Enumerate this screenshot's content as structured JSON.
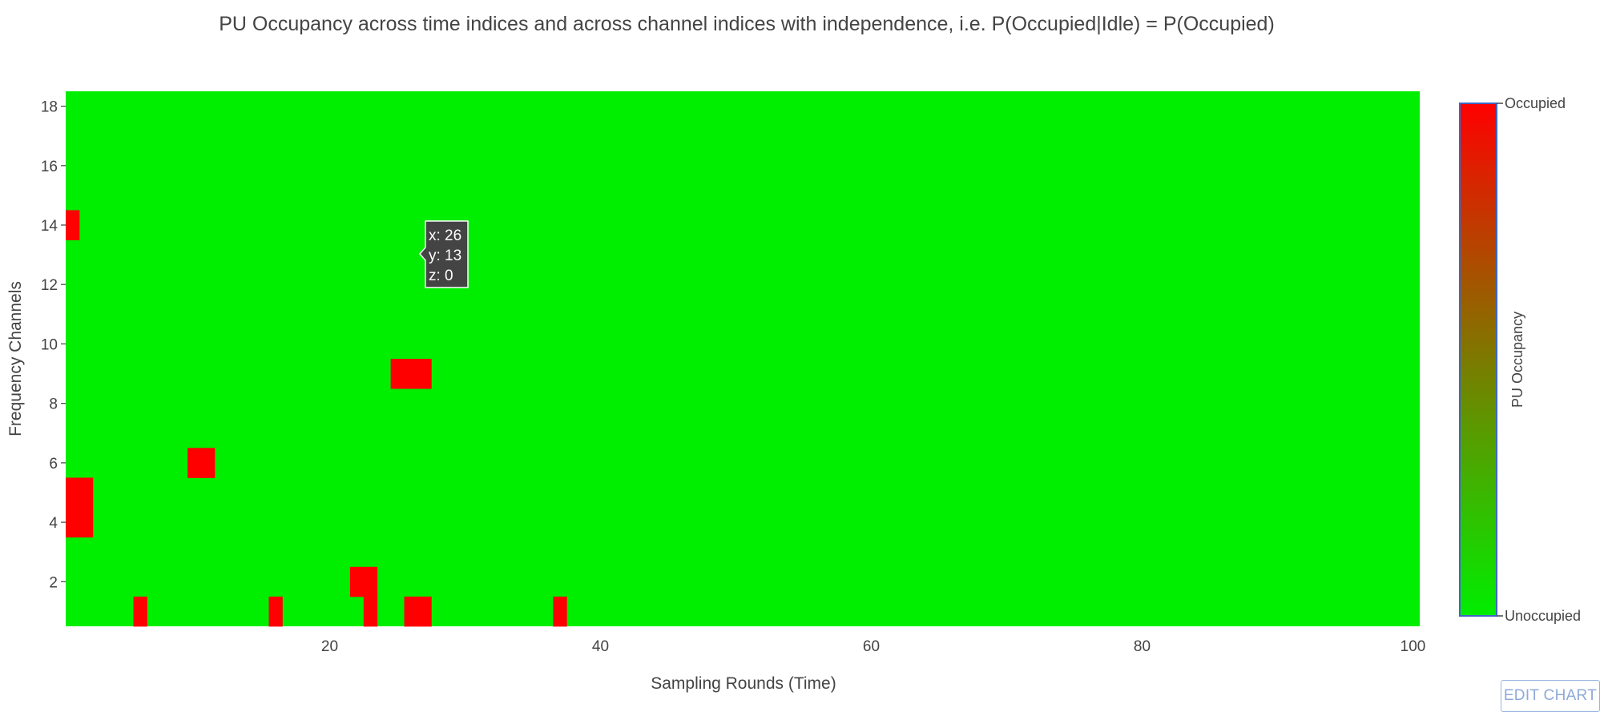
{
  "chart_data": {
    "type": "heatmap",
    "title": "PU Occupancy across time indices and across channel indices with independence, i.e. P(Occupied|Idle) = P(Occupied)",
    "xlabel": "Sampling Rounds (Time)",
    "ylabel": "Frequency Channels",
    "x_range": [
      1,
      100
    ],
    "y_range": [
      1,
      18
    ],
    "x_ticks": [
      "20",
      "40",
      "60",
      "80",
      "100"
    ],
    "y_ticks": [
      "2",
      "4",
      "6",
      "8",
      "10",
      "12",
      "14",
      "16",
      "18"
    ],
    "colorbar": {
      "title": "PU Occupancy",
      "tick_top": "Occupied",
      "tick_bottom": "Unoccupied",
      "colorscale": [
        "#00ee00",
        "#ff0000"
      ]
    },
    "z_values": [
      0,
      1
    ],
    "z_encoding": "one string per channel (row 1 first, row 18 last); each character is the occupancy for sampling rounds 1 through 100, 0 = Unoccupied, 1 = Occupied",
    "z": [
      "0000010000000001000000100110000000001000000000000000000000000000000000000000000000000000000000000000",
      "0000000000000000000001100000000000000000000000000000000000000000000000000000000000000000000000000000",
      "0000000000000000000000000000000000000000000000000000000000000000000000000000000000000000000000000000",
      "1100000000000000000000000000000000000000000000000000000000000000000000000000000000000000000000000000",
      "1100000000000000000000000000000000000000000000000000000000000000000000000000000000000000000000000000",
      "0000000001100000000000000000000000000000000000000000000000000000000000000000000000000000000000000000",
      "0000000000000000000000000000000000000000000000000000000000000000000000000000000000000000000000000000",
      "0000000000000000000000000000000000000000000000000000000000000000000000000000000000000000000000000000",
      "0000000000000000000000001110000000000000000000000000000000000000000000000000000000000000000000000000",
      "0000000000000000000000000000000000000000000000000000000000000000000000000000000000000000000000000000",
      "0000000000000000000000000000000000000000000000000000000000000000000000000000000000000000000000000000",
      "0000000000000000000000000000000000000000000000000000000000000000000000000000000000000000000000000000",
      "0000000000000000000000000000000000000000000000000000000000000000000000000000000000000000000000000000",
      "1000000000000000000000000000000000000000000000000000000000000000000000000000000000000000000000000000",
      "0000000000000000000000000000000000000000000000000000000000000000000000000000000000000000000000000000",
      "0000000000000000000000000000000000000000000000000000000000000000000000000000000000000000000000000000",
      "0000000000000000000000000000000000000000000000000000000000000000000000000000000000000000000000000000",
      "0000000000000000000000000000000000000000000000000000000000000000000000000000000000000000000000000000"
    ],
    "hover": {
      "x": "x: 26",
      "y": "y: 13",
      "z": "z: 0"
    }
  },
  "toolbar": {
    "edit_label": "EDIT CHART"
  }
}
